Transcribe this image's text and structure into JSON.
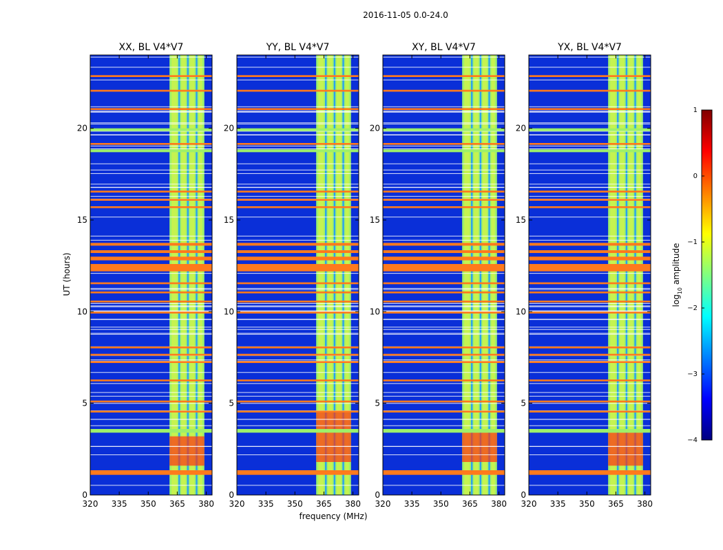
{
  "figure": {
    "suptitle": "2016-11-05 0.0-24.0",
    "xlabel": "frequency (MHz)",
    "ylabel": "UT (hours)"
  },
  "chart_data": {
    "type": "heatmap",
    "x_range_mhz": [
      320,
      383
    ],
    "y_range_hours": [
      0,
      24
    ],
    "x_ticks": [
      "320",
      "335",
      "350",
      "365",
      "380"
    ],
    "x_tick_values": [
      320,
      335,
      350,
      365,
      380
    ],
    "y_ticks": [
      "0",
      "5",
      "10",
      "15",
      "20"
    ],
    "y_tick_values": [
      0,
      5,
      10,
      15,
      20
    ],
    "panels": [
      {
        "title": "XX, BL V4*V7",
        "polarization": "XX"
      },
      {
        "title": "YY, BL V4*V7",
        "polarization": "YY"
      },
      {
        "title": "XY, BL V4*V7",
        "polarization": "XY"
      },
      {
        "title": "YX, BL V4*V7",
        "polarization": "YX"
      }
    ],
    "band": {
      "start_mhz": 361,
      "end_mhz": 379,
      "divider_mhz": [
        366,
        370.5,
        375
      ]
    },
    "flagged_bands_hours": [
      {
        "start": 1.1,
        "end": 1.35,
        "level": "high"
      },
      {
        "start": 3.4,
        "end": 3.6,
        "level": "mid"
      },
      {
        "start": 4.5,
        "end": 4.6,
        "level": "high"
      },
      {
        "start": 5.05,
        "end": 5.15,
        "level": "high"
      },
      {
        "start": 6.2,
        "end": 6.3,
        "level": "high"
      },
      {
        "start": 7.2,
        "end": 7.3,
        "level": "high"
      },
      {
        "start": 7.6,
        "end": 7.7,
        "level": "high"
      },
      {
        "start": 8.0,
        "end": 8.1,
        "level": "high"
      },
      {
        "start": 9.9,
        "end": 10.0,
        "level": "high"
      },
      {
        "start": 10.5,
        "end": 10.6,
        "level": "high"
      },
      {
        "start": 11.0,
        "end": 11.1,
        "level": "high"
      },
      {
        "start": 11.5,
        "end": 11.6,
        "level": "high"
      },
      {
        "start": 12.2,
        "end": 12.6,
        "level": "high"
      },
      {
        "start": 12.8,
        "end": 13.0,
        "level": "high"
      },
      {
        "start": 13.2,
        "end": 13.35,
        "level": "high"
      },
      {
        "start": 13.6,
        "end": 13.75,
        "level": "high"
      },
      {
        "start": 15.65,
        "end": 15.75,
        "level": "high"
      },
      {
        "start": 16.05,
        "end": 16.15,
        "level": "high"
      },
      {
        "start": 16.5,
        "end": 16.6,
        "level": "high"
      },
      {
        "start": 18.7,
        "end": 18.85,
        "level": "mid"
      },
      {
        "start": 19.1,
        "end": 19.2,
        "level": "high"
      },
      {
        "start": 19.85,
        "end": 20.0,
        "level": "mid"
      },
      {
        "start": 21.0,
        "end": 21.1,
        "level": "high"
      },
      {
        "start": 22.0,
        "end": 22.1,
        "level": "high"
      },
      {
        "start": 22.8,
        "end": 22.9,
        "level": "high"
      }
    ],
    "hot_regions": [
      {
        "panels": [
          0
        ],
        "start_hours": 1.6,
        "end_hours": 3.2,
        "start_mhz": 361,
        "end_mhz": 379
      },
      {
        "panels": [
          1
        ],
        "start_hours": 1.8,
        "end_hours": 4.6,
        "start_mhz": 361,
        "end_mhz": 379
      },
      {
        "panels": [
          2
        ],
        "start_hours": 1.8,
        "end_hours": 3.4,
        "start_mhz": 361,
        "end_mhz": 379
      },
      {
        "panels": [
          3
        ],
        "start_hours": 1.6,
        "end_hours": 3.4,
        "start_mhz": 361,
        "end_mhz": 379
      }
    ],
    "colorbar": {
      "label": "log10 amplitude",
      "label_main": "log",
      "label_sub": "10",
      "label_tail": " amplitude",
      "range": [
        -4,
        1
      ],
      "ticks": [
        "1",
        "0",
        "−1",
        "−2",
        "−3",
        "−4"
      ],
      "tick_values": [
        1,
        0,
        -1,
        -2,
        -3,
        -4
      ],
      "colormap": [
        "#000080",
        "#0000ff",
        "#0080ff",
        "#00ffff",
        "#80ff80",
        "#ffff00",
        "#ff8000",
        "#ff0000",
        "#800000"
      ]
    },
    "colors": {
      "background": "#0a2fd8",
      "band_base": "#9ef06a",
      "band_light": "#e6f53a",
      "band_divider": "#2aa0f0",
      "flag_high": "#ff7a1c",
      "flag_mid": "#9ef06a",
      "hot": "#ff3010",
      "thin_line": "#ffffff"
    }
  }
}
